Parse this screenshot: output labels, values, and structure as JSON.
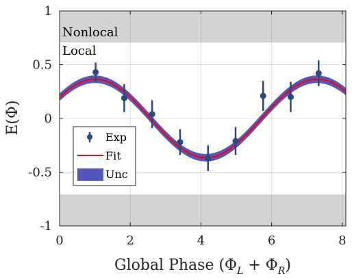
{
  "chart_data": {
    "type": "scatter",
    "title": "",
    "xlabel": "Global Phase (Φ",
    "xlabel_sub1": "L",
    "xlabel_plus": " + Φ",
    "xlabel_sub2": "R",
    "xlabel_close": ")",
    "ylabel": "E(Φ)",
    "xlim": [
      0,
      8.1
    ],
    "ylim": [
      -1,
      1
    ],
    "xticks": [
      0,
      2,
      4,
      6,
      8
    ],
    "xtick_labels": [
      "0",
      "2",
      "4",
      "6",
      "8"
    ],
    "yticks": [
      -1,
      -0.5,
      0,
      0.5,
      1
    ],
    "ytick_labels": [
      "-1",
      "-0.5",
      "0",
      "0.5",
      "1"
    ],
    "grid": true,
    "regions": [
      {
        "label": "Nonlocal",
        "y_range": [
          0.707,
          1
        ],
        "color": "#d3d3d3"
      },
      {
        "label": "Local",
        "y_range": [
          -0.707,
          0.707
        ],
        "color": "#ffffff"
      },
      {
        "label": "",
        "y_range": [
          -1,
          -0.707
        ],
        "color": "#d3d3d3"
      }
    ],
    "series": [
      {
        "name": "Exp",
        "kind": "errorbar",
        "color": "#2a4a7f",
        "x": [
          1.02,
          1.83,
          2.62,
          3.41,
          4.2,
          4.98,
          5.76,
          6.54,
          7.33
        ],
        "y": [
          0.43,
          0.19,
          0.04,
          -0.22,
          -0.37,
          -0.21,
          0.21,
          0.2,
          0.42
        ],
        "err": [
          0.09,
          0.13,
          0.13,
          0.12,
          0.12,
          0.13,
          0.14,
          0.14,
          0.12
        ]
      },
      {
        "name": "Fit",
        "kind": "line",
        "color": "#ff0000",
        "function": "A*cos(x - phi)",
        "amplitude": 0.365,
        "phase": 1.0
      },
      {
        "name": "Unc",
        "kind": "band",
        "color": "#5555bb",
        "half_width": 0.035
      }
    ],
    "legend": {
      "position": "lower-left",
      "entries": [
        "Exp",
        "Fit",
        "Unc"
      ]
    }
  }
}
